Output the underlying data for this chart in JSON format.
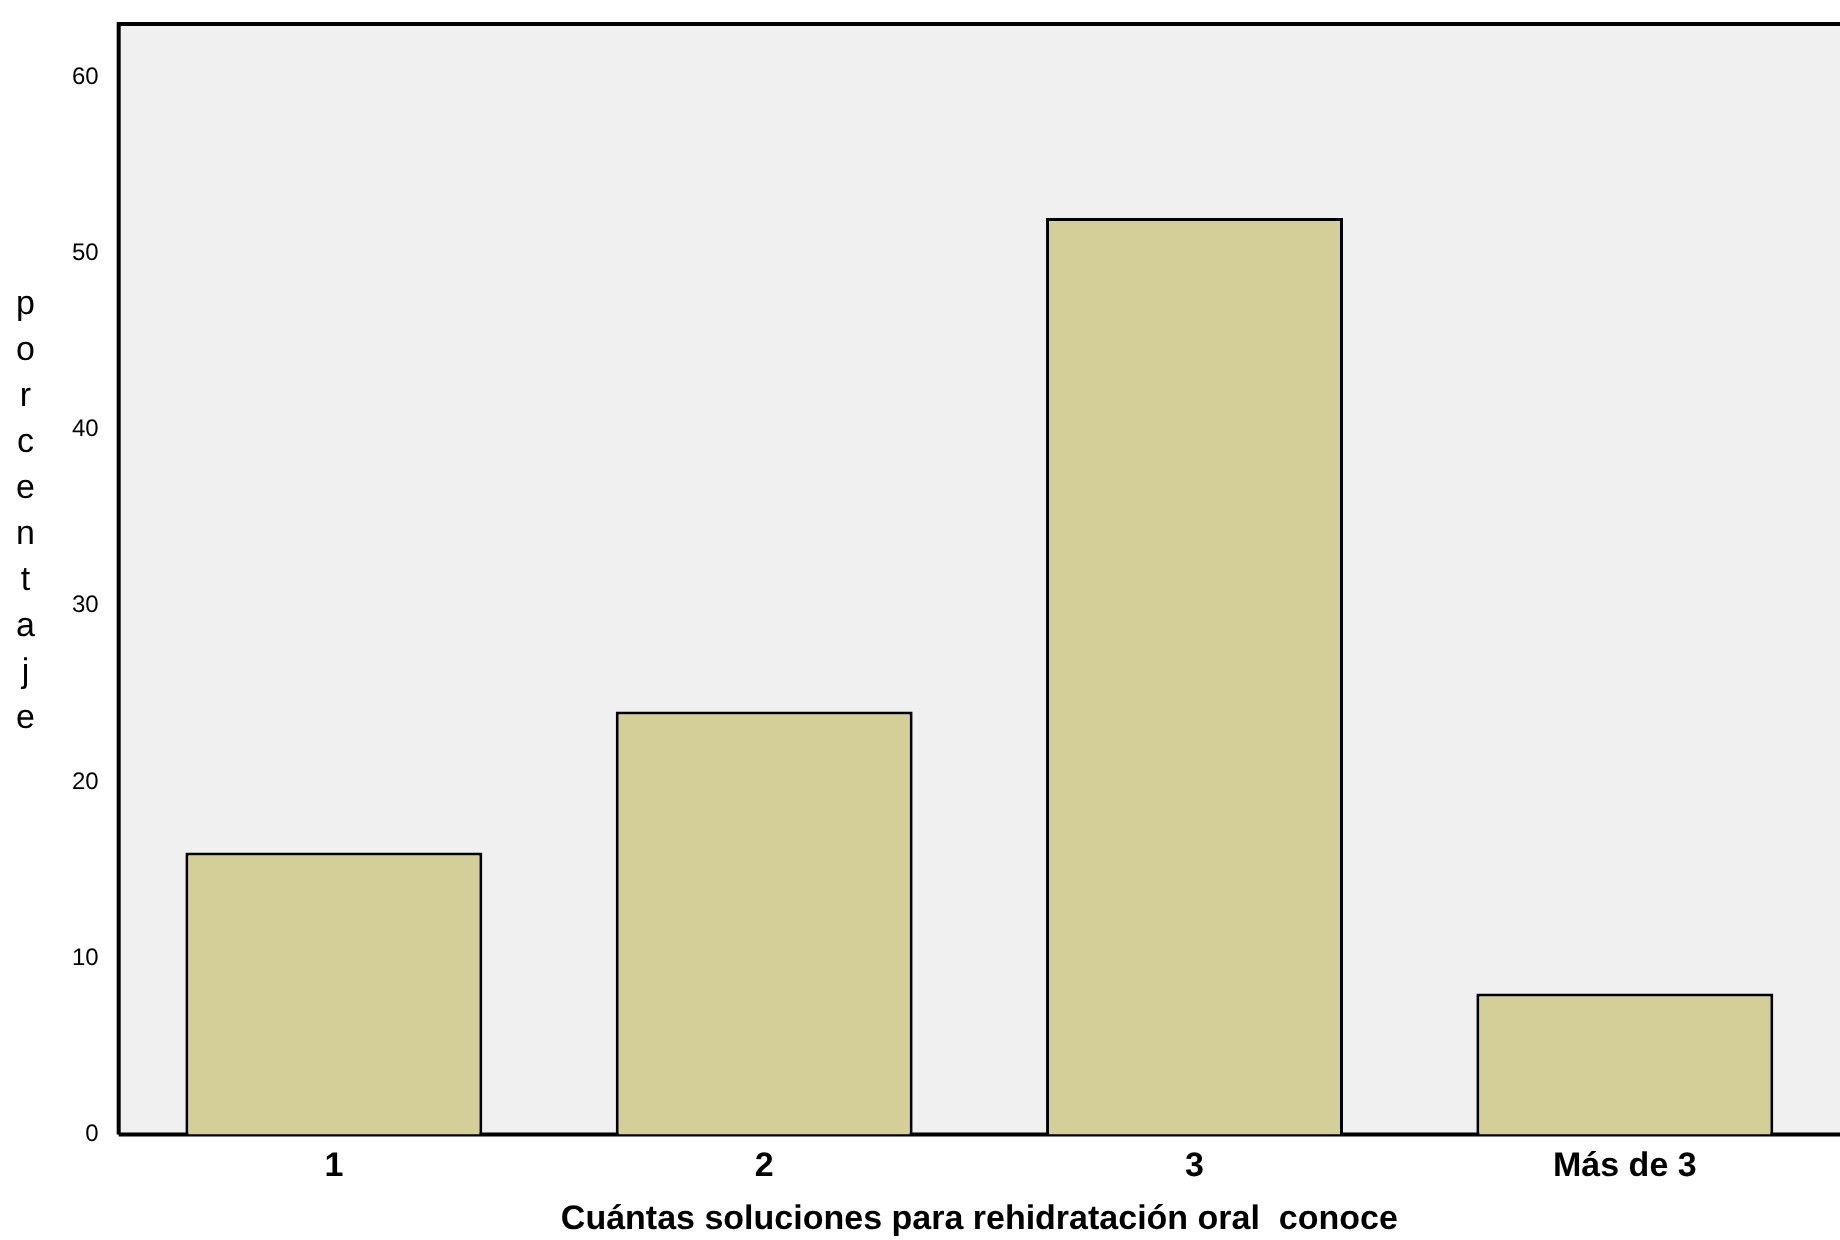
{
  "chart_data": {
    "type": "bar",
    "xlabel": "Cuántas soluciones para rehidratación oral  conoce",
    "ylabel": "porcentaje",
    "categories": [
      "1",
      "2",
      "3",
      "Más de 3"
    ],
    "values": [
      16,
      24,
      52,
      8
    ],
    "color": "#d4cf99",
    "ylim": [
      0,
      63
    ],
    "yticks": [
      0,
      10,
      20,
      30,
      40,
      50,
      60
    ],
    "grid": false,
    "legend": false
  }
}
